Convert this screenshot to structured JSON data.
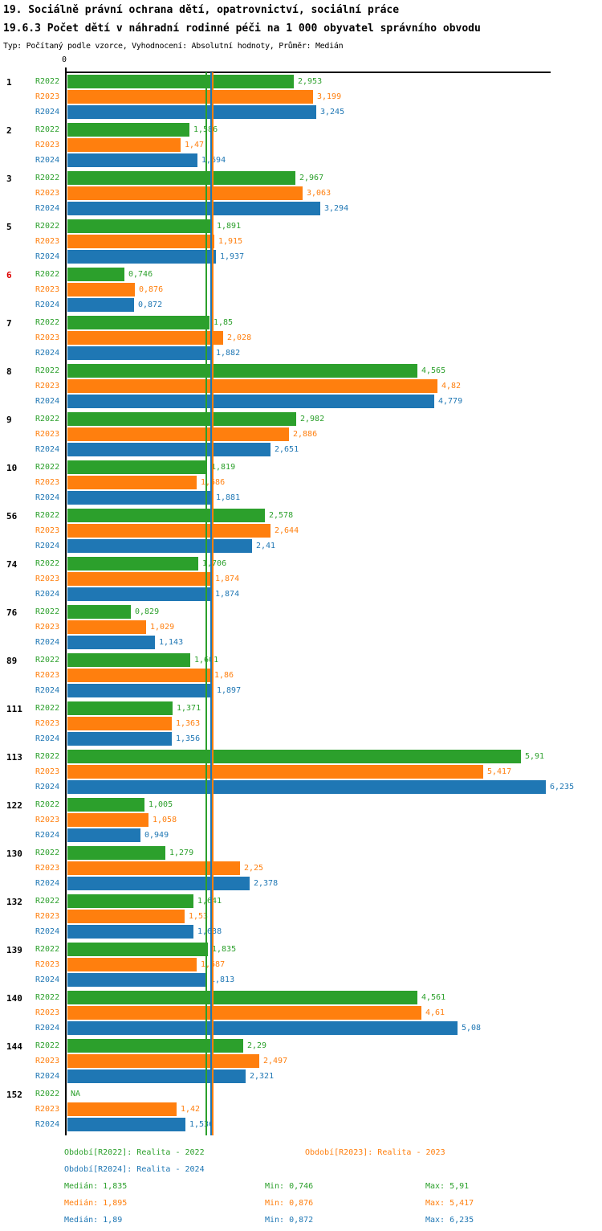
{
  "chart_data": {
    "type": "bar",
    "orientation": "horizontal",
    "title": "19. Sociálně právní ochrana dětí, opatrovnictví, sociální práce",
    "subtitle": "19.6.3 Počet dětí v náhradní rodinné péči na 1 000 obyvatel správního obvodu",
    "meta": "Typ: Počítaný podle vzorce, Vyhodnocení: Absolutní hodnoty, Průměr: Medián",
    "value_format": "czech-decimal-comma",
    "axis": {
      "zero_label": "0",
      "xlim": [
        0,
        6.3
      ],
      "gridlines": false
    },
    "series": [
      {
        "key": "R2022",
        "name": "Realita - 2022",
        "color": "#2ca02c",
        "median": 1.835,
        "min": 0.746,
        "max": 5.91
      },
      {
        "key": "R2023",
        "name": "Realita - 2023",
        "color": "#ff7f0e",
        "median": 1.895,
        "min": 0.876,
        "max": 5.417
      },
      {
        "key": "R2024",
        "name": "Realita - 2024",
        "color": "#1f77b4",
        "median": 1.89,
        "min": 0.872,
        "max": 6.235
      }
    ],
    "median_lines": [
      {
        "series": "R2022",
        "value": 1.835,
        "color": "#2ca02c"
      },
      {
        "series": "R2024",
        "value": 1.89,
        "color": "#1f77b4"
      },
      {
        "series": "R2023",
        "value": 1.895,
        "color": "#ff7f0e"
      }
    ],
    "groups": [
      {
        "id": "1",
        "highlight": false,
        "values": [
          2.953,
          3.199,
          3.245
        ],
        "displays": [
          "2,953",
          "3,199",
          "3,245"
        ]
      },
      {
        "id": "2",
        "highlight": false,
        "values": [
          1.586,
          1.47,
          1.694
        ],
        "displays": [
          "1,586",
          "1,47",
          "1,694"
        ]
      },
      {
        "id": "3",
        "highlight": false,
        "values": [
          2.967,
          3.063,
          3.294
        ],
        "displays": [
          "2,967",
          "3,063",
          "3,294"
        ]
      },
      {
        "id": "5",
        "highlight": false,
        "values": [
          1.891,
          1.915,
          1.937
        ],
        "displays": [
          "1,891",
          "1,915",
          "1,937"
        ]
      },
      {
        "id": "6",
        "highlight": true,
        "values": [
          0.746,
          0.876,
          0.872
        ],
        "displays": [
          "0,746",
          "0,876",
          "0,872"
        ]
      },
      {
        "id": "7",
        "highlight": false,
        "values": [
          1.85,
          2.028,
          1.882
        ],
        "displays": [
          "1,85",
          "2,028",
          "1,882"
        ]
      },
      {
        "id": "8",
        "highlight": false,
        "values": [
          4.565,
          4.82,
          4.779
        ],
        "displays": [
          "4,565",
          "4,82",
          "4,779"
        ]
      },
      {
        "id": "9",
        "highlight": false,
        "values": [
          2.982,
          2.886,
          2.651
        ],
        "displays": [
          "2,982",
          "2,886",
          "2,651"
        ]
      },
      {
        "id": "10",
        "highlight": false,
        "values": [
          1.819,
          1.686,
          1.881
        ],
        "displays": [
          "1,819",
          "1,686",
          "1,881"
        ]
      },
      {
        "id": "56",
        "highlight": false,
        "values": [
          2.578,
          2.644,
          2.41
        ],
        "displays": [
          "2,578",
          "2,644",
          "2,41"
        ]
      },
      {
        "id": "74",
        "highlight": false,
        "values": [
          1.706,
          1.874,
          1.874
        ],
        "displays": [
          "1,706",
          "1,874",
          "1,874"
        ]
      },
      {
        "id": "76",
        "highlight": false,
        "values": [
          0.829,
          1.029,
          1.143
        ],
        "displays": [
          "0,829",
          "1,029",
          "1,143"
        ]
      },
      {
        "id": "89",
        "highlight": false,
        "values": [
          1.601,
          1.86,
          1.897
        ],
        "displays": [
          "1,601",
          "1,86",
          "1,897"
        ]
      },
      {
        "id": "111",
        "highlight": false,
        "values": [
          1.371,
          1.363,
          1.356
        ],
        "displays": [
          "1,371",
          "1,363",
          "1,356"
        ]
      },
      {
        "id": "113",
        "highlight": false,
        "values": [
          5.91,
          5.417,
          6.235
        ],
        "displays": [
          "5,91",
          "5,417",
          "6,235"
        ]
      },
      {
        "id": "122",
        "highlight": false,
        "values": [
          1.005,
          1.058,
          0.949
        ],
        "displays": [
          "1,005",
          "1,058",
          "0,949"
        ]
      },
      {
        "id": "130",
        "highlight": false,
        "values": [
          1.279,
          2.25,
          2.378
        ],
        "displays": [
          "1,279",
          "2,25",
          "2,378"
        ]
      },
      {
        "id": "132",
        "highlight": false,
        "values": [
          1.641,
          1.53,
          1.638
        ],
        "displays": [
          "1,641",
          "1,53",
          "1,638"
        ]
      },
      {
        "id": "139",
        "highlight": false,
        "values": [
          1.835,
          1.687,
          1.813
        ],
        "displays": [
          "1,835",
          "1,687",
          "1,813"
        ]
      },
      {
        "id": "140",
        "highlight": false,
        "values": [
          4.561,
          4.61,
          5.08
        ],
        "displays": [
          "4,561",
          "4,61",
          "5,08"
        ]
      },
      {
        "id": "144",
        "highlight": false,
        "values": [
          2.29,
          2.497,
          2.321
        ],
        "displays": [
          "2,29",
          "2,497",
          "2,321"
        ]
      },
      {
        "id": "152",
        "highlight": false,
        "values": [
          null,
          1.42,
          1.536
        ],
        "displays": [
          "NA",
          "1,42",
          "1,536"
        ]
      }
    ]
  },
  "legend": {
    "period_labels": [
      {
        "series": "R2022",
        "label": "Období[R2022]: Realita - 2022",
        "color": "#2ca02c"
      },
      {
        "series": "R2023",
        "label": "Období[R2023]: Realita - 2023",
        "color": "#ff7f0e"
      },
      {
        "series": "R2024",
        "label": "Období[R2024]: Realita - 2024",
        "color": "#1f77b4"
      }
    ],
    "stats": [
      {
        "series": "R2022",
        "median": "Medián: 1,835",
        "min": "Min: 0,746",
        "max": "Max: 5,91",
        "color": "#2ca02c"
      },
      {
        "series": "R2023",
        "median": "Medián: 1,895",
        "min": "Min: 0,876",
        "max": "Max: 5,417",
        "color": "#ff7f0e"
      },
      {
        "series": "R2024",
        "median": "Medián: 1,89",
        "min": "Min: 0,872",
        "max": "Max: 6,235",
        "color": "#1f77b4"
      }
    ]
  },
  "colors": {
    "highlight_label": "#dd0000",
    "axis": "#000000",
    "background": "#ffffff"
  }
}
